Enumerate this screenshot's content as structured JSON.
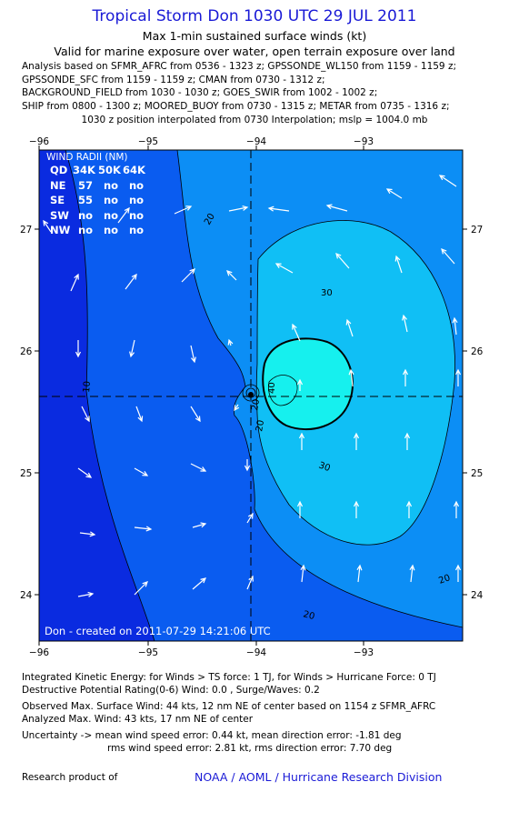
{
  "title": "Tropical Storm Don 1030 UTC 29 JUL 2011",
  "subtitle1": "Max 1-min sustained surface winds (kt)",
  "subtitle2": "Valid for marine exposure over water, open terrain exposure over land",
  "analysis_lines": [
    "Analysis based on SFMR_AFRC from 0536 - 1323 z; GPSSONDE_WL150 from 1159 - 1159 z;",
    "GPSSONDE_SFC from 1159 - 1159 z; CMAN from 0730 - 1312 z;",
    "BACKGROUND_FIELD from 1030 - 1030 z; GOES_SWIR from 1002 - 1002 z;",
    "SHIP from 0800 - 1300 z; MOORED_BUOY from 0730 - 1315 z; METAR from 0735 - 1316 z;"
  ],
  "position_line": "1030 z position interpolated from 0730 Interpolation; mslp = 1004.0 mb",
  "map": {
    "lon_labels": [
      "−96",
      "−95",
      "−94",
      "−93"
    ],
    "lat_labels": [
      "27",
      "26",
      "25",
      "24"
    ],
    "center": {
      "lon": -94.0,
      "lat": 25.6
    },
    "colors": {
      "band_lt10": "#0a2be0",
      "band_10_20": "#0a5cf0",
      "band_20_30": "#0c8ef5",
      "band_30_40": "#10bff5",
      "band_gt40": "#16f0ee",
      "contour": "#000000",
      "arrow": "#ffffff"
    },
    "contour_labels": [
      "10",
      "20",
      "20",
      "20",
      "30",
      "30",
      "40",
      "20",
      "20"
    ],
    "wind_radii": {
      "heading": "WIND RADII (NM)",
      "columns": [
        "QD",
        "34K",
        "50K",
        "64K"
      ],
      "rows": [
        [
          "NE",
          "57",
          "no",
          "no"
        ],
        [
          "SE",
          "55",
          "no",
          "no"
        ],
        [
          "SW",
          "no",
          "no",
          "no"
        ],
        [
          "NW",
          "no",
          "no",
          "no"
        ]
      ]
    },
    "created_text": "Don - created on 2011-07-29 14:21:06 UTC"
  },
  "footer": {
    "ike": "Integrated Kinetic Energy:  for Winds > TS force: 1 TJ,  for Winds > Hurricane Force: 0 TJ",
    "dpr": "Destructive Potential Rating(0-6)   Wind: 0.0 , Surge/Waves: 0.2",
    "observed": "Observed Max. Surface Wind: 44 kts, 12 nm NE of center based on 1154 z SFMR_AFRC",
    "analyzed": "Analyzed Max. Wind: 43 kts, 17 nm NE of center",
    "uncert1": "Uncertainty -> mean wind speed error: 0.44 kt,   mean direction error:  -1.81 deg",
    "uncert2": "rms wind speed error: 2.81 kt,   rms direction error: 7.70 deg",
    "research": "Research product of",
    "credit": "NOAA / AOML / Hurricane Research Division"
  }
}
